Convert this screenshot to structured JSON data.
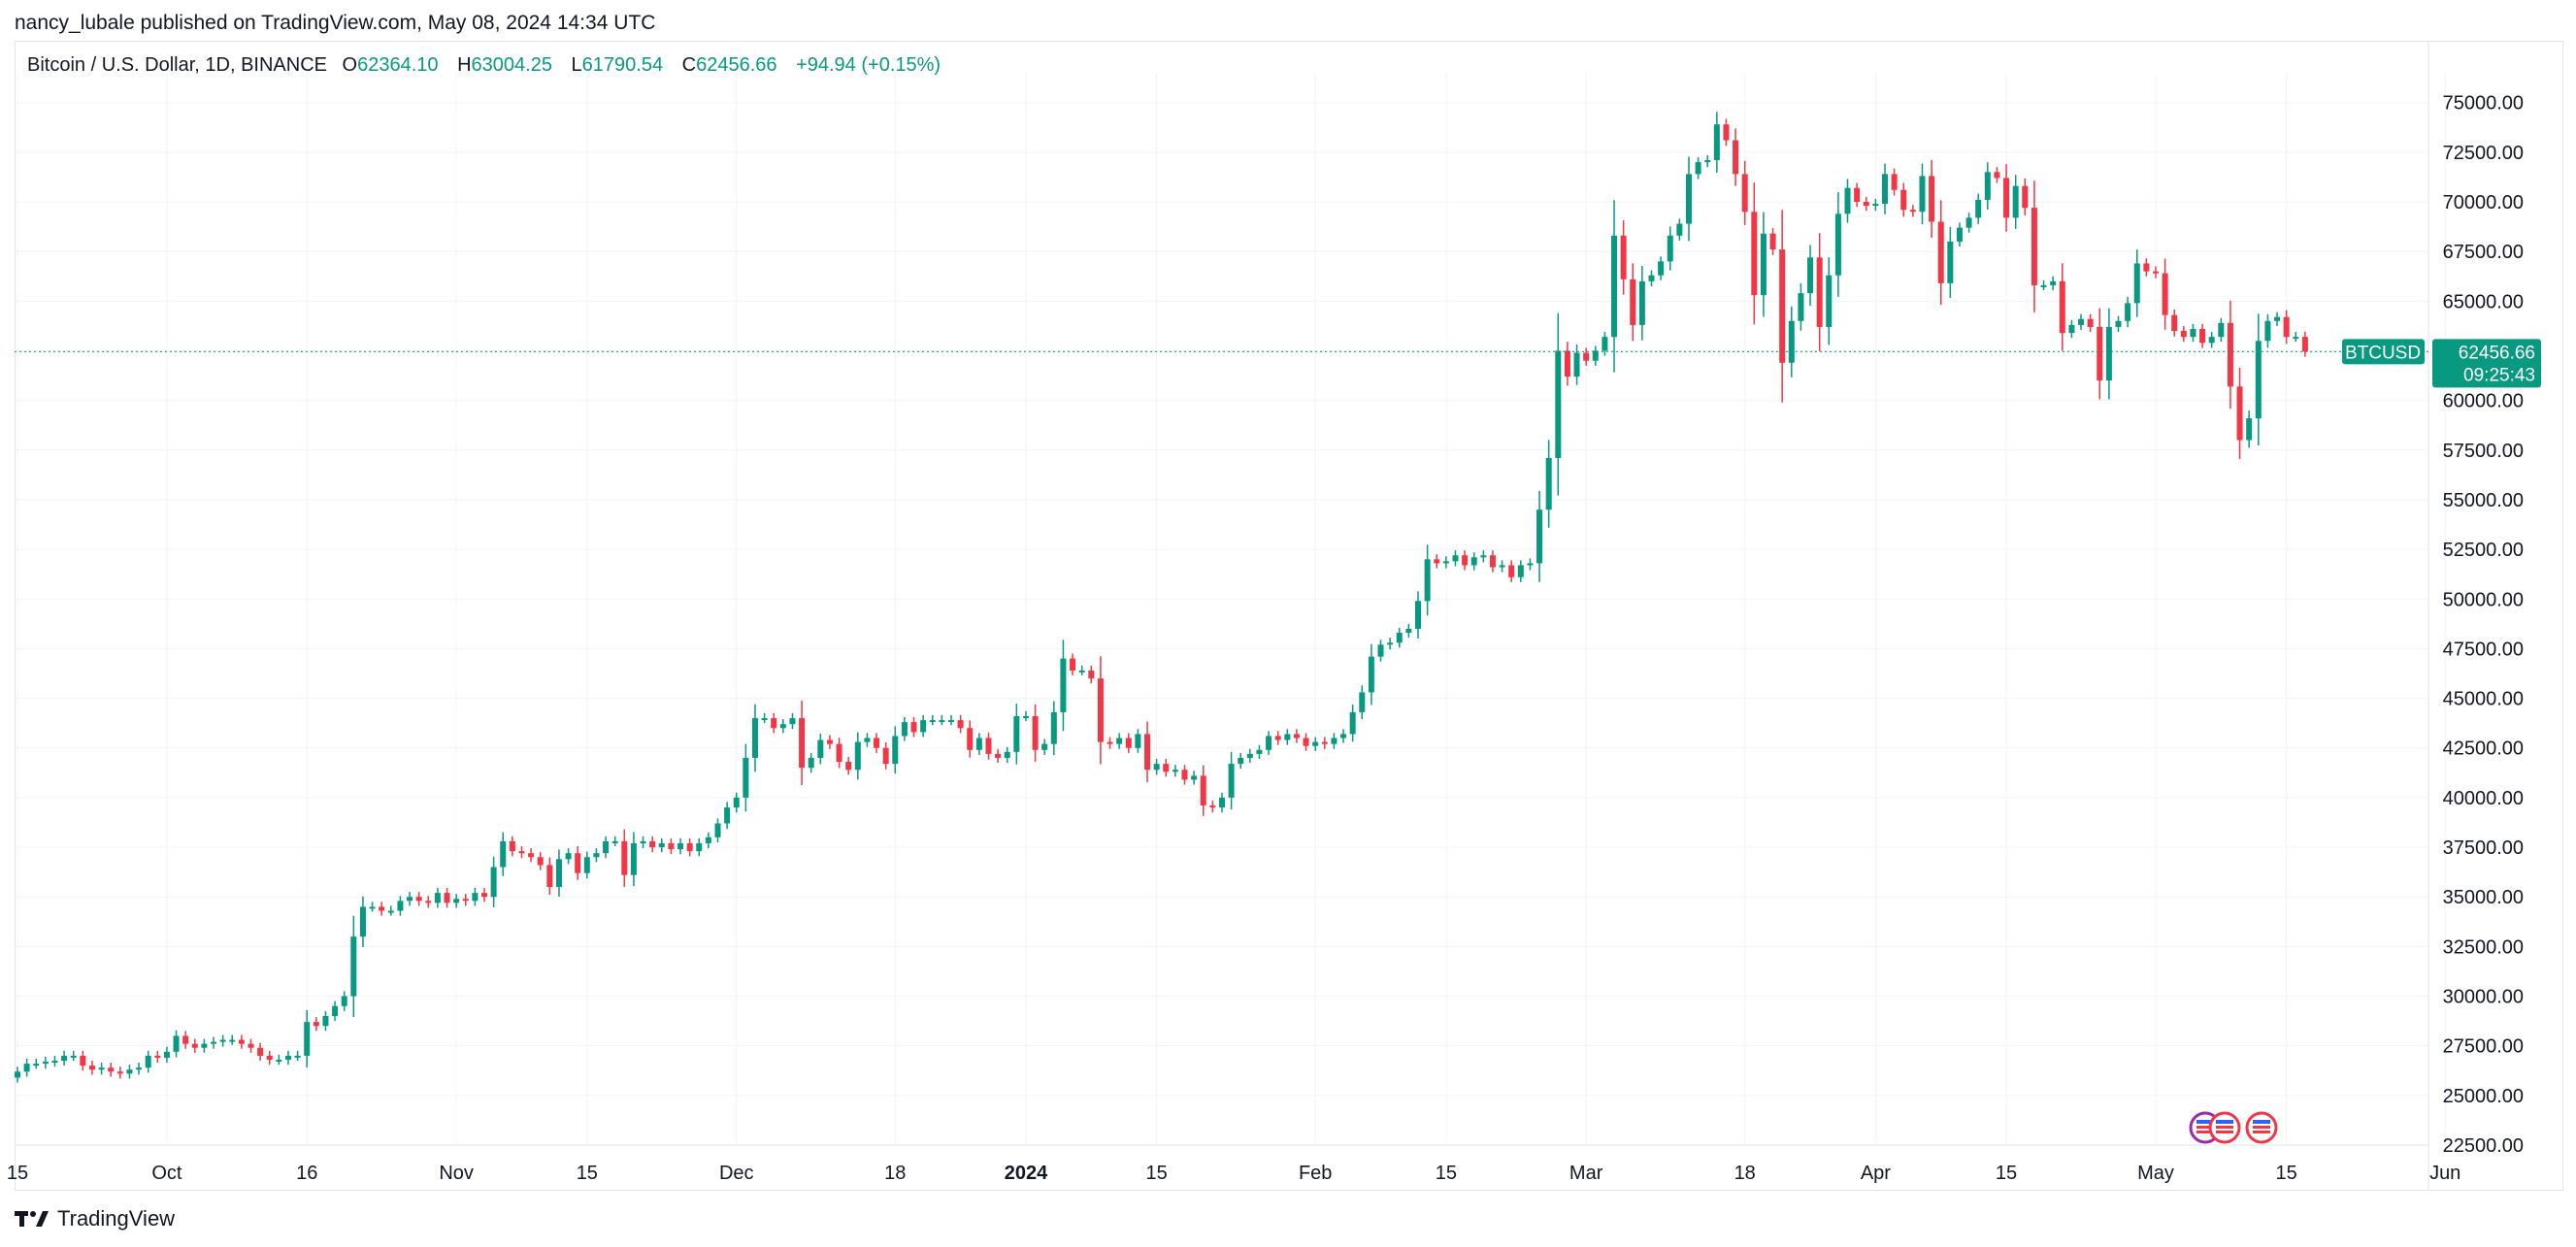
{
  "publisher": "nancy_lubale published on TradingView.com, May 08, 2024 14:34 UTC",
  "legend": {
    "symbol": "Bitcoin / U.S. Dollar, 1D, BINANCE",
    "open_label": "O",
    "open": "62364.10",
    "high_label": "H",
    "high": "63004.25",
    "low_label": "L",
    "low": "61790.54",
    "close_label": "C",
    "close": "62456.66",
    "change": "+94.94 (+0.15%)"
  },
  "price_tag": {
    "ticker": "BTCUSD",
    "price": "62456.66",
    "countdown": "09:25:43"
  },
  "brand": "TradingView",
  "colors": {
    "up": "#089981",
    "down": "#f23645",
    "grid": "#f0f3fa",
    "text": "#131722"
  },
  "chart_data": {
    "type": "candlestick",
    "title": "Bitcoin / U.S. Dollar, 1D, BINANCE",
    "ylim": [
      22500,
      76500
    ],
    "last_price": 62456.66,
    "y_ticks": [
      "75000.00",
      "72500.00",
      "70000.00",
      "67500.00",
      "65000.00",
      "62500.00",
      "60000.00",
      "57500.00",
      "55000.00",
      "52500.00",
      "50000.00",
      "47500.00",
      "45000.00",
      "42500.00",
      "40000.00",
      "37500.00",
      "35000.00",
      "32500.00",
      "30000.00",
      "27500.00",
      "25000.00",
      "22500.00"
    ],
    "x_ticks": [
      {
        "label": "15",
        "day": 0
      },
      {
        "label": "Oct",
        "day": 16
      },
      {
        "label": "16",
        "day": 31
      },
      {
        "label": "Nov",
        "day": 47
      },
      {
        "label": "15",
        "day": 61
      },
      {
        "label": "Dec",
        "day": 77
      },
      {
        "label": "18",
        "day": 94
      },
      {
        "label": "2024",
        "day": 108,
        "bold": true
      },
      {
        "label": "15",
        "day": 122
      },
      {
        "label": "Feb",
        "day": 139
      },
      {
        "label": "15",
        "day": 153
      },
      {
        "label": "Mar",
        "day": 168
      },
      {
        "label": "18",
        "day": 185
      },
      {
        "label": "Apr",
        "day": 199
      },
      {
        "label": "15",
        "day": 213
      },
      {
        "label": "May",
        "day": 229
      },
      {
        "label": "15",
        "day": 243
      },
      {
        "label": "Jun",
        "day": 260
      }
    ],
    "close": [
      26200,
      26600,
      26600,
      26700,
      26750,
      27000,
      27000,
      26500,
      26300,
      26400,
      26200,
      26100,
      26300,
      26400,
      27000,
      26900,
      27200,
      28000,
      27600,
      27400,
      27600,
      27700,
      27800,
      27800,
      27600,
      27400,
      27000,
      26800,
      26800,
      27000,
      27000,
      28700,
      28500,
      29000,
      29500,
      30000,
      33000,
      34500,
      34500,
      34300,
      34300,
      34800,
      35000,
      34800,
      34700,
      35200,
      34700,
      34900,
      34800,
      35200,
      35000,
      36500,
      37800,
      37300,
      37200,
      37000,
      36600,
      35500,
      36900,
      37200,
      36200,
      37000,
      37200,
      37800,
      37800,
      36100,
      37700,
      37800,
      37500,
      37700,
      37400,
      37700,
      37300,
      37700,
      38000,
      38700,
      39500,
      40000,
      42000,
      44000,
      44000,
      43500,
      43700,
      44000,
      41500,
      42000,
      42900,
      42700,
      41800,
      41400,
      42800,
      43000,
      42500,
      41700,
      43100,
      43800,
      43300,
      43900,
      43900,
      43900,
      43900,
      43500,
      42400,
      43000,
      42200,
      42000,
      42300,
      44100,
      44100,
      42400,
      42700,
      44300,
      47000,
      46400,
      46400,
      46000,
      42800,
      42700,
      43000,
      42500,
      43200,
      41400,
      41700,
      41300,
      41400,
      40900,
      41100,
      39600,
      39500,
      40000,
      41700,
      42000,
      42200,
      42400,
      43100,
      42900,
      43200,
      43000,
      42600,
      42800,
      42700,
      43000,
      43200,
      44300,
      45300,
      47100,
      47700,
      47800,
      48300,
      48500,
      49900,
      52000,
      51800,
      51900,
      52200,
      51700,
      52100,
      52200,
      51600,
      51700,
      51100,
      51700,
      51800,
      54500,
      57100,
      62500,
      61200,
      62400,
      62000,
      62500,
      63200,
      68300,
      66100,
      63800,
      66000,
      66300,
      67000,
      68300,
      68900,
      71400,
      72000,
      72100,
      73900,
      73100,
      71400,
      69500,
      65300,
      68400,
      67600,
      61900,
      64000,
      65400,
      67200,
      63700,
      66300,
      69400,
      70700,
      70000,
      69800,
      69900,
      71400,
      70600,
      69600,
      69500,
      71300,
      69000,
      65900,
      68000,
      68700,
      69200,
      70100,
      71500,
      71200,
      69200,
      70800,
      69700,
      65800,
      65800,
      66000,
      63400,
      63800,
      64100,
      63700,
      61000,
      63700,
      64000,
      64900,
      66900,
      66500,
      66400,
      64300,
      63500,
      63200,
      63600,
      62900,
      63200,
      63900,
      60700,
      58000,
      59100,
      63000,
      64000,
      64200,
      63200,
      63200,
      62456.66
    ]
  }
}
